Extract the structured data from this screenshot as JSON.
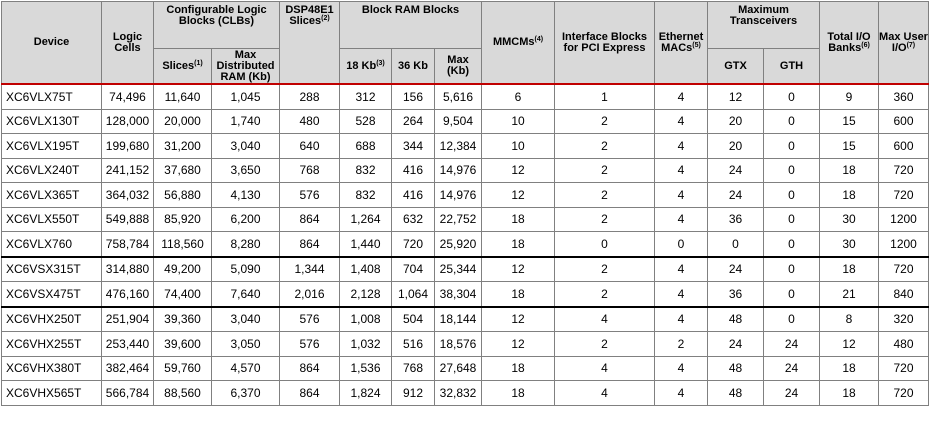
{
  "header": {
    "device": "Device",
    "logic_cells": "Logic Cells",
    "clb_group": "Configurable Logic Blocks (CLBs)",
    "slices": "Slices",
    "slices_note": "(1)",
    "max_dist_ram": "Max Distributed RAM (Kb)",
    "dsp": "DSP48E1 Slices",
    "dsp_note": "(2)",
    "bram_group": "Block RAM Blocks",
    "bram_18": "18 Kb",
    "bram_18_note": "(3)",
    "bram_36": "36 Kb",
    "bram_max": "Max (Kb)",
    "mmcm": "MMCMs",
    "mmcm_note": "(4)",
    "pcie": "Interface Blocks for PCI Express",
    "ethernet": "Ethernet MACs",
    "ethernet_note": "(5)",
    "transceivers_group": "Maximum Transceivers",
    "gtx": "GTX",
    "gth": "GTH",
    "io_banks": "Total I/O Banks",
    "io_banks_note": "(6)",
    "max_user_io": "Max User I/O",
    "max_user_io_note": "(7)"
  },
  "rows": [
    [
      "XC6VLX75T",
      "74,496",
      "11,640",
      "1,045",
      "288",
      "312",
      "156",
      "5,616",
      "6",
      "1",
      "4",
      "12",
      "0",
      "9",
      "360"
    ],
    [
      "XC6VLX130T",
      "128,000",
      "20,000",
      "1,740",
      "480",
      "528",
      "264",
      "9,504",
      "10",
      "2",
      "4",
      "20",
      "0",
      "15",
      "600"
    ],
    [
      "XC6VLX195T",
      "199,680",
      "31,200",
      "3,040",
      "640",
      "688",
      "344",
      "12,384",
      "10",
      "2",
      "4",
      "20",
      "0",
      "15",
      "600"
    ],
    [
      "XC6VLX240T",
      "241,152",
      "37,680",
      "3,650",
      "768",
      "832",
      "416",
      "14,976",
      "12",
      "2",
      "4",
      "24",
      "0",
      "18",
      "720"
    ],
    [
      "XC6VLX365T",
      "364,032",
      "56,880",
      "4,130",
      "576",
      "832",
      "416",
      "14,976",
      "12",
      "2",
      "4",
      "24",
      "0",
      "18",
      "720"
    ],
    [
      "XC6VLX550T",
      "549,888",
      "85,920",
      "6,200",
      "864",
      "1,264",
      "632",
      "22,752",
      "18",
      "2",
      "4",
      "36",
      "0",
      "30",
      "1200"
    ],
    [
      "XC6VLX760",
      "758,784",
      "118,560",
      "8,280",
      "864",
      "1,440",
      "720",
      "25,920",
      "18",
      "0",
      "0",
      "0",
      "0",
      "30",
      "1200"
    ],
    [
      "XC6VSX315T",
      "314,880",
      "49,200",
      "5,090",
      "1,344",
      "1,408",
      "704",
      "25,344",
      "12",
      "2",
      "4",
      "24",
      "0",
      "18",
      "720"
    ],
    [
      "XC6VSX475T",
      "476,160",
      "74,400",
      "7,640",
      "2,016",
      "2,128",
      "1,064",
      "38,304",
      "18",
      "2",
      "4",
      "36",
      "0",
      "21",
      "840"
    ],
    [
      "XC6VHX250T",
      "251,904",
      "39,360",
      "3,040",
      "576",
      "1,008",
      "504",
      "18,144",
      "12",
      "4",
      "4",
      "48",
      "0",
      "8",
      "320"
    ],
    [
      "XC6VHX255T",
      "253,440",
      "39,600",
      "3,050",
      "576",
      "1,032",
      "516",
      "18,576",
      "12",
      "2",
      "2",
      "24",
      "24",
      "12",
      "480"
    ],
    [
      "XC6VHX380T",
      "382,464",
      "59,760",
      "4,570",
      "864",
      "1,536",
      "768",
      "27,648",
      "18",
      "4",
      "4",
      "48",
      "24",
      "18",
      "720"
    ],
    [
      "XC6VHX565T",
      "566,784",
      "88,560",
      "6,370",
      "864",
      "1,824",
      "912",
      "32,832",
      "18",
      "4",
      "4",
      "48",
      "24",
      "18",
      "720"
    ]
  ]
}
